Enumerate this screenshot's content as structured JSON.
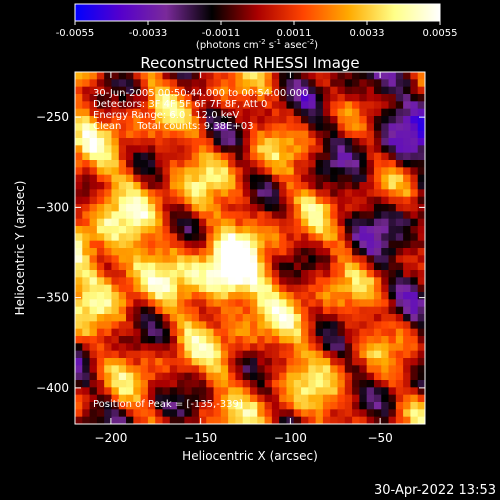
{
  "colorbar": {
    "ticks": [
      "-0.0055",
      "-0.0033",
      "-0.0011",
      "0.0011",
      "0.0033",
      "0.0055"
    ],
    "units_prefix": "(photons cm",
    "units_exp1": "-2",
    "units_mid": " s",
    "units_exp2": "-1",
    "units_mid2": " asec",
    "units_exp3": "-2",
    "units_suffix": ")"
  },
  "chart_data": {
    "type": "heatmap",
    "title": "Reconstructed RHESSI Image",
    "xlabel": "Heliocentric X (arcsec)",
    "ylabel": "Heliocentric Y (arcsec)",
    "xlim": [
      -220,
      -25
    ],
    "ylim": [
      -420,
      -225
    ],
    "x_ticks": [
      -200,
      -150,
      -100,
      -50
    ],
    "y_ticks": [
      -400,
      -350,
      -300,
      -250
    ],
    "x_tick_labels": [
      "−200",
      "−150",
      "−100",
      "−50"
    ],
    "y_tick_labels": [
      "−400",
      "−350",
      "−300",
      "−250"
    ],
    "value_range": [
      -0.0055,
      0.0055
    ],
    "colormap": [
      "#0000ff",
      "#5500cc",
      "#7a2a9a",
      "#000000",
      "#aa0000",
      "#ff4400",
      "#ffaa00",
      "#ffff88",
      "#ffffff"
    ],
    "peak": {
      "x": -135,
      "y": -339
    },
    "annotations": [
      "30-Jun-2005 00:50:44.000 to 00:54:00.000",
      "Detectors: 3F 4F 5F 6F 7F 8F, Att 0",
      "Energy Range: 6.0 - 12.0 keV",
      "Clean     Total counts: 9.38E+03"
    ],
    "peak_label": "Position of Peak = [-135,-339]",
    "grid": false
  },
  "timestamp": "30-Apr-2022 13:53"
}
